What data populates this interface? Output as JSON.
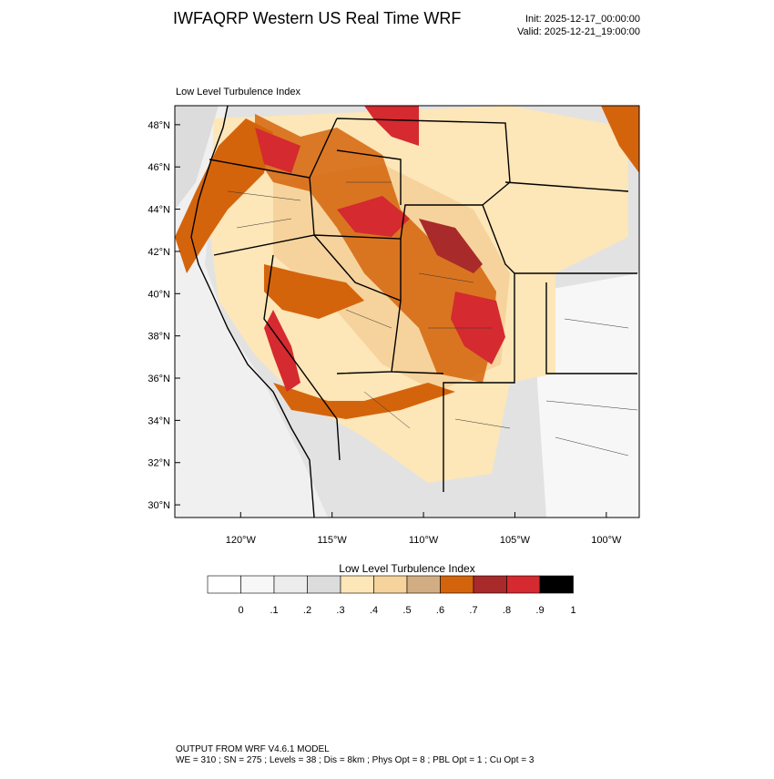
{
  "header": {
    "title": "IWFAQRP Western US Real Time WRF",
    "init": "Init: 2025-12-17_00:00:00",
    "valid": "Valid: 2025-12-21_19:00:00"
  },
  "map": {
    "title": "Low Level Turbulence Index",
    "xlim": [
      -123.6,
      -98.2
    ],
    "ylim": [
      29.4,
      48.9
    ],
    "yticks": [
      {
        "value": 30,
        "label": "30°N"
      },
      {
        "value": 32,
        "label": "32°N"
      },
      {
        "value": 34,
        "label": "34°N"
      },
      {
        "value": 36,
        "label": "36°N"
      },
      {
        "value": 38,
        "label": "38°N"
      },
      {
        "value": 40,
        "label": "40°N"
      },
      {
        "value": 42,
        "label": "42°N"
      },
      {
        "value": 44,
        "label": "44°N"
      },
      {
        "value": 46,
        "label": "46°N"
      },
      {
        "value": 48,
        "label": "48°N"
      }
    ],
    "xticks": [
      {
        "value": -120,
        "label": "120°W"
      },
      {
        "value": -115,
        "label": "115°W"
      },
      {
        "value": -110,
        "label": "110°W"
      },
      {
        "value": -105,
        "label": "105°W"
      },
      {
        "value": -100,
        "label": "100°W"
      }
    ]
  },
  "colorbar": {
    "title": "Low Level Turbulence Index",
    "ticks": [
      {
        "value": 0,
        "label": "0"
      },
      {
        "value": 0.1,
        "label": ".1"
      },
      {
        "value": 0.2,
        "label": ".2"
      },
      {
        "value": 0.3,
        "label": ".3"
      },
      {
        "value": 0.4,
        "label": ".4"
      },
      {
        "value": 0.5,
        "label": ".5"
      },
      {
        "value": 0.6,
        "label": ".6"
      },
      {
        "value": 0.7,
        "label": ".7"
      },
      {
        "value": 0.8,
        "label": ".8"
      },
      {
        "value": 0.9,
        "label": ".9"
      },
      {
        "value": 1,
        "label": "1"
      }
    ],
    "colors": [
      "#ffffff",
      "#f7f7f7",
      "#ececec",
      "#dcdcdc",
      "#fde6b8",
      "#f6d39c",
      "#d2ad84",
      "#d4640c",
      "#a82a2a",
      "#d42a30",
      "#000000"
    ]
  },
  "footer": {
    "line1": "OUTPUT FROM WRF V4.6.1 MODEL",
    "line2": "WE = 310 ; SN = 275 ; Levels = 38 ; Dis = 8km ; Phys Opt = 8 ; PBL Opt = 1 ; Cu Opt = 3"
  }
}
